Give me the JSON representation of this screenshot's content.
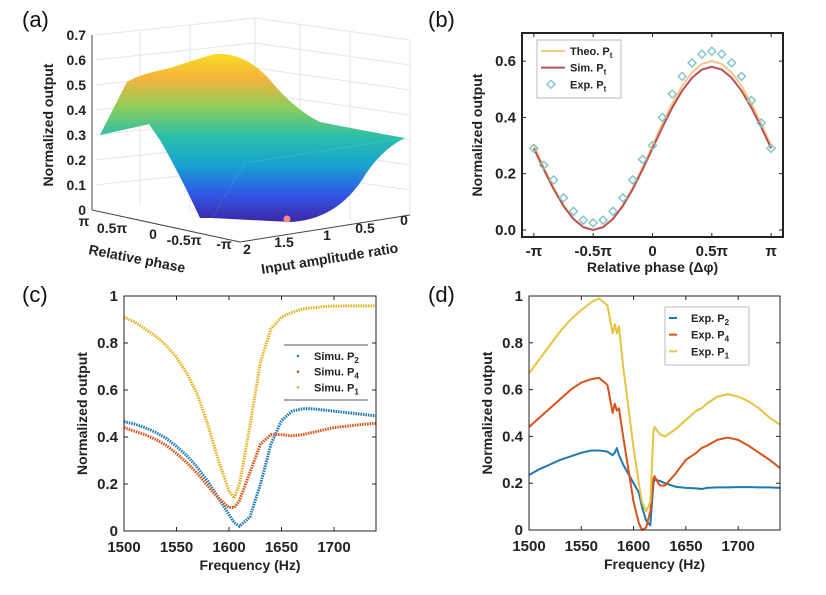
{
  "panels": {
    "a": {
      "label": "(a)"
    },
    "b": {
      "label": "(b)"
    },
    "c": {
      "label": "(c)"
    },
    "d": {
      "label": "(d)"
    }
  },
  "chart_data": [
    {
      "id": "a",
      "type": "surface",
      "zlabel": "Normalized output",
      "xlabel": "Relative phase",
      "ylabel": "Input amplitude ratio",
      "zlim": [
        0,
        0.7
      ],
      "zticks": [
        "0",
        "0.1",
        "0.2",
        "0.3",
        "0.4",
        "0.5",
        "0.6",
        "0.7"
      ],
      "xticks": [
        "π",
        "0.5π",
        "0",
        "-0.5π",
        "-π"
      ],
      "yticks": [
        "2",
        "1.5",
        "1",
        "0.5",
        "0"
      ],
      "colormap": [
        "#3e26a8",
        "#2f5ae6",
        "#17a2d0",
        "#2cc0a8",
        "#8fcd5a",
        "#f2b33c",
        "#f9e21f"
      ],
      "marker_color": "#f08a8a",
      "grid": true
    },
    {
      "id": "b",
      "type": "line",
      "xlabel": "Relative phase (Δφ)",
      "ylabel": "Normalized output",
      "xlim": [
        -1.1,
        1.1
      ],
      "ylim": [
        -0.025,
        0.7
      ],
      "xticks": [
        {
          "v": -1,
          "label": "-π"
        },
        {
          "v": -0.5,
          "label": "-0.5π"
        },
        {
          "v": 0,
          "label": "0"
        },
        {
          "v": 0.5,
          "label": "0.5π"
        },
        {
          "v": 1,
          "label": "π"
        }
      ],
      "yticks": [
        {
          "v": 0,
          "label": "0.0"
        },
        {
          "v": 0.2,
          "label": "0.2"
        },
        {
          "v": 0.4,
          "label": "0.4"
        },
        {
          "v": 0.6,
          "label": "0.6"
        }
      ],
      "x_unit": "π",
      "legend": "top-left",
      "x": [
        -1,
        -0.9167,
        -0.8333,
        -0.75,
        -0.6667,
        -0.5833,
        -0.5,
        -0.4167,
        -0.3333,
        -0.25,
        -0.1667,
        -0.0833,
        0,
        0.0833,
        0.1667,
        0.25,
        0.3333,
        0.4167,
        0.5,
        0.5833,
        0.6667,
        0.75,
        0.8333,
        0.9167,
        1
      ],
      "series": [
        {
          "name": "Theo. P",
          "sub": "t",
          "style": "line",
          "color": "#f3c98b",
          "values": [
            0.3,
            0.222,
            0.15,
            0.088,
            0.04,
            0.01,
            0,
            0.01,
            0.04,
            0.088,
            0.15,
            0.222,
            0.3,
            0.378,
            0.45,
            0.512,
            0.56,
            0.59,
            0.6,
            0.59,
            0.56,
            0.512,
            0.45,
            0.378,
            0.3
          ]
        },
        {
          "name": "Sim. P",
          "sub": "t",
          "style": "line",
          "color": "#c0504d",
          "values": [
            0.29,
            0.215,
            0.145,
            0.085,
            0.039,
            0.01,
            0,
            0.01,
            0.039,
            0.085,
            0.145,
            0.215,
            0.29,
            0.365,
            0.435,
            0.495,
            0.541,
            0.57,
            0.58,
            0.57,
            0.541,
            0.495,
            0.435,
            0.365,
            0.29
          ]
        },
        {
          "name": "Exp. P",
          "sub": "t",
          "style": "diamond",
          "color": "#7fc4c9",
          "values": [
            0.29,
            0.23,
            0.178,
            0.114,
            0.066,
            0.035,
            0.025,
            0.035,
            0.066,
            0.114,
            0.178,
            0.251,
            0.3,
            0.4,
            0.483,
            0.546,
            0.594,
            0.625,
            0.635,
            0.625,
            0.594,
            0.546,
            0.46,
            0.38,
            0.29
          ]
        }
      ]
    },
    {
      "id": "c",
      "type": "scatter",
      "xlabel": "Frequency (Hz)",
      "ylabel": "Normalized output",
      "xlim": [
        1500,
        1740
      ],
      "ylim": [
        0,
        1
      ],
      "xticks": [
        {
          "v": 1500,
          "label": "1500"
        },
        {
          "v": 1550,
          "label": "1550"
        },
        {
          "v": 1600,
          "label": "1600"
        },
        {
          "v": 1650,
          "label": "1650"
        },
        {
          "v": 1700,
          "label": "1700"
        }
      ],
      "yticks": [
        {
          "v": 0,
          "label": "0"
        },
        {
          "v": 0.2,
          "label": "0.2"
        },
        {
          "v": 0.4,
          "label": "0.4"
        },
        {
          "v": 0.6,
          "label": "0.6"
        },
        {
          "v": 0.8,
          "label": "0.8"
        },
        {
          "v": 1,
          "label": "1"
        }
      ],
      "legend": "right",
      "x": [
        1500,
        1510,
        1520,
        1530,
        1540,
        1550,
        1560,
        1570,
        1580,
        1590,
        1600,
        1605,
        1610,
        1620,
        1630,
        1640,
        1650,
        1660,
        1670,
        1680,
        1690,
        1700,
        1710,
        1720,
        1730,
        1740
      ],
      "series": [
        {
          "name": "Simu. P",
          "sub": "2",
          "style": "dots",
          "color": "#1f77b4",
          "values": [
            0.465,
            0.455,
            0.44,
            0.42,
            0.395,
            0.36,
            0.32,
            0.27,
            0.21,
            0.14,
            0.07,
            0.035,
            0.02,
            0.06,
            0.2,
            0.37,
            0.47,
            0.51,
            0.52,
            0.52,
            0.515,
            0.51,
            0.505,
            0.5,
            0.495,
            0.49
          ]
        },
        {
          "name": "Simu. P",
          "sub": "4",
          "style": "dots",
          "color": "#d95319",
          "values": [
            0.44,
            0.425,
            0.41,
            0.39,
            0.365,
            0.33,
            0.29,
            0.245,
            0.19,
            0.14,
            0.1,
            0.1,
            0.13,
            0.25,
            0.37,
            0.41,
            0.41,
            0.405,
            0.41,
            0.42,
            0.43,
            0.44,
            0.445,
            0.45,
            0.455,
            0.458
          ]
        },
        {
          "name": "Simu. P",
          "sub": "1",
          "style": "dots",
          "color": "#e6b422",
          "values": [
            0.91,
            0.89,
            0.86,
            0.83,
            0.79,
            0.74,
            0.67,
            0.58,
            0.45,
            0.3,
            0.17,
            0.14,
            0.2,
            0.45,
            0.72,
            0.86,
            0.91,
            0.93,
            0.945,
            0.95,
            0.955,
            0.957,
            0.958,
            0.958,
            0.958,
            0.958
          ]
        }
      ]
    },
    {
      "id": "d",
      "type": "line",
      "xlabel": "Frequency (Hz)",
      "ylabel": "Normalized output",
      "xlim": [
        1500,
        1740
      ],
      "ylim": [
        0,
        1
      ],
      "xticks": [
        {
          "v": 1500,
          "label": "1500"
        },
        {
          "v": 1550,
          "label": "1550"
        },
        {
          "v": 1600,
          "label": "1600"
        },
        {
          "v": 1650,
          "label": "1650"
        },
        {
          "v": 1700,
          "label": "1700"
        }
      ],
      "yticks": [
        {
          "v": 0,
          "label": "0"
        },
        {
          "v": 0.2,
          "label": "0.2"
        },
        {
          "v": 0.4,
          "label": "0.4"
        },
        {
          "v": 0.6,
          "label": "0.6"
        },
        {
          "v": 0.8,
          "label": "0.8"
        },
        {
          "v": 1,
          "label": "1"
        }
      ],
      "legend": "top-right",
      "x": [
        1500,
        1510,
        1520,
        1530,
        1540,
        1550,
        1560,
        1567,
        1575,
        1580,
        1582,
        1584,
        1586,
        1590,
        1600,
        1605,
        1608,
        1612,
        1616,
        1619,
        1620,
        1625,
        1630,
        1640,
        1650,
        1660,
        1665,
        1670,
        1680,
        1690,
        1700,
        1710,
        1720,
        1730,
        1740
      ],
      "series": [
        {
          "name": "Exp. P",
          "sub": "2",
          "style": "line",
          "color": "#1f77b4",
          "values": [
            0.235,
            0.26,
            0.28,
            0.3,
            0.315,
            0.33,
            0.34,
            0.34,
            0.335,
            0.32,
            0.33,
            0.35,
            0.32,
            0.28,
            0.2,
            0.16,
            0.1,
            0.04,
            0.02,
            0.2,
            0.215,
            0.21,
            0.2,
            0.185,
            0.18,
            0.178,
            0.175,
            0.18,
            0.182,
            0.182,
            0.183,
            0.183,
            0.182,
            0.182,
            0.18
          ]
        },
        {
          "name": "Exp. P",
          "sub": "4",
          "style": "line",
          "color": "#d95319",
          "values": [
            0.44,
            0.48,
            0.52,
            0.56,
            0.6,
            0.63,
            0.645,
            0.65,
            0.62,
            0.5,
            0.54,
            0.51,
            0.52,
            0.4,
            0.12,
            0.03,
            0.0,
            0.01,
            0.08,
            0.22,
            0.23,
            0.19,
            0.19,
            0.24,
            0.3,
            0.33,
            0.35,
            0.36,
            0.385,
            0.395,
            0.385,
            0.36,
            0.33,
            0.3,
            0.265
          ]
        },
        {
          "name": "Exp. P",
          "sub": "1",
          "style": "line",
          "color": "#e6c440",
          "values": [
            0.67,
            0.73,
            0.79,
            0.85,
            0.9,
            0.94,
            0.975,
            0.99,
            0.96,
            0.84,
            0.88,
            0.84,
            0.87,
            0.7,
            0.35,
            0.2,
            0.12,
            0.08,
            0.12,
            0.42,
            0.44,
            0.41,
            0.4,
            0.43,
            0.47,
            0.51,
            0.52,
            0.54,
            0.57,
            0.58,
            0.57,
            0.55,
            0.52,
            0.48,
            0.45
          ]
        }
      ]
    }
  ]
}
